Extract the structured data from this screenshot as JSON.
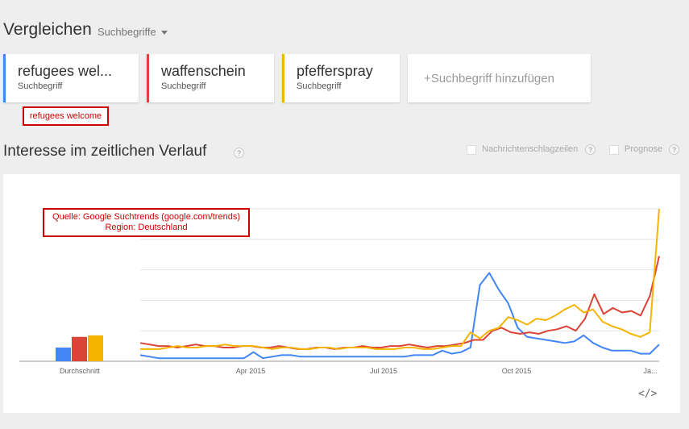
{
  "header": {
    "title": "Vergleichen",
    "dropdown_label": "Suchbegriffe"
  },
  "terms": [
    {
      "label": "refugees wel...",
      "type": "Suchbegriff",
      "color": "#4285f4"
    },
    {
      "label": "waffenschein",
      "type": "Suchbegriff",
      "color": "#db4437"
    },
    {
      "label": "pfefferspray",
      "type": "Suchbegriff",
      "color": "#f4b400"
    }
  ],
  "add_term": {
    "plus": "+",
    "label": "Suchbegriff hinzufügen"
  },
  "tooltip": "refugees welcome",
  "section": {
    "title": "Interesse im zeitlichen Verlauf",
    "help": "?",
    "options": [
      {
        "label": "Nachrichtenschlagzeilen",
        "help": "?"
      },
      {
        "label": "Prognose",
        "help": "?"
      }
    ]
  },
  "source_annotation": {
    "line1": "Quelle: Google Suchtrends (google.com/trends)",
    "line2": "Region: Deutschland"
  },
  "embed_label": "</>",
  "chart_data": {
    "type": "line",
    "average_bars": {
      "label": "Durchschnitt",
      "values": [
        9,
        16,
        17
      ]
    },
    "x_tick_labels": [
      "Apr 2015",
      "Jul 2015",
      "Oct 2015",
      "Ja..."
    ],
    "y_range": [
      0,
      100
    ],
    "gridlines": true,
    "series": [
      {
        "color": "#4285f4",
        "values": [
          4,
          3,
          2,
          2,
          2,
          2,
          2,
          2,
          2,
          2,
          2,
          2,
          6,
          2,
          3,
          4,
          4,
          3,
          3,
          3,
          3,
          3,
          3,
          3,
          3,
          3,
          3,
          3,
          3,
          4,
          4,
          4,
          7,
          5,
          6,
          9,
          50,
          58,
          47,
          38,
          22,
          16,
          15,
          14,
          13,
          12,
          13,
          17,
          12,
          9,
          7,
          7,
          7,
          5,
          5,
          11
        ]
      },
      {
        "color": "#db4437",
        "values": [
          12,
          11,
          10,
          10,
          9,
          10,
          11,
          10,
          10,
          9,
          9,
          10,
          10,
          9,
          9,
          10,
          9,
          8,
          8,
          9,
          9,
          8,
          9,
          9,
          10,
          9,
          9,
          10,
          10,
          11,
          10,
          9,
          10,
          10,
          11,
          12,
          14,
          14,
          20,
          22,
          19,
          18,
          19,
          18,
          20,
          21,
          23,
          20,
          28,
          44,
          31,
          35,
          32,
          33,
          30,
          43,
          69
        ]
      },
      {
        "color": "#f4b400",
        "values": [
          8,
          8,
          8,
          9,
          10,
          9,
          9,
          10,
          10,
          11,
          10,
          10,
          10,
          9,
          8,
          9,
          9,
          8,
          8,
          9,
          9,
          8,
          9,
          9,
          9,
          8,
          8,
          8,
          9,
          9,
          8,
          8,
          9,
          10,
          10,
          19,
          15,
          20,
          22,
          29,
          27,
          24,
          28,
          27,
          30,
          34,
          37,
          32,
          34,
          26,
          23,
          21,
          18,
          16,
          19,
          100
        ]
      }
    ]
  }
}
